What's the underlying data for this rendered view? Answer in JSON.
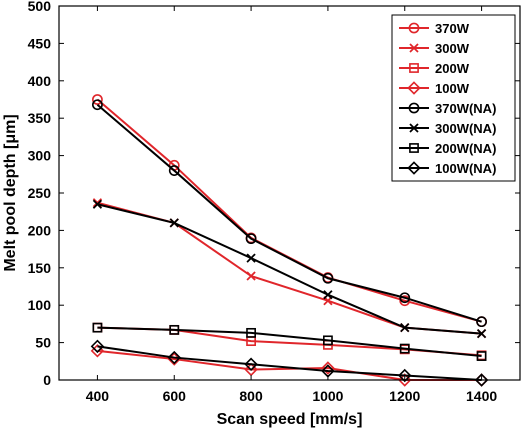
{
  "chart_data": {
    "type": "line",
    "xlabel": "Scan speed [mm/s]",
    "ylabel": "Melt pool depth [μm]",
    "x": [
      400,
      600,
      800,
      1000,
      1200,
      1400
    ],
    "xlim": [
      300,
      1500
    ],
    "ylim": [
      0,
      500
    ],
    "xticks": [
      "400",
      "600",
      "800",
      "1000",
      "1200",
      "1400"
    ],
    "yticks": [
      "0",
      "50",
      "100",
      "150",
      "200",
      "250",
      "300",
      "350",
      "400",
      "450",
      "500"
    ],
    "grid": false,
    "legend_position": "top-right",
    "series": [
      {
        "name": "370W",
        "color": "#e0262b",
        "marker": "circle",
        "values": [
          375,
          287,
          190,
          137,
          106,
          78
        ]
      },
      {
        "name": "300W",
        "color": "#e0262b",
        "marker": "x",
        "values": [
          237,
          210,
          139,
          106,
          70,
          62
        ]
      },
      {
        "name": "200W",
        "color": "#e0262b",
        "marker": "square",
        "values": [
          70,
          67,
          52,
          47,
          41,
          33
        ]
      },
      {
        "name": "100W",
        "color": "#e0262b",
        "marker": "diamond",
        "values": [
          39,
          28,
          14,
          16,
          0,
          0
        ]
      },
      {
        "name": "370W(NA)",
        "color": "#000000",
        "marker": "circle",
        "values": [
          368,
          280,
          189,
          136,
          110,
          78
        ]
      },
      {
        "name": "300W(NA)",
        "color": "#000000",
        "marker": "x",
        "values": [
          235,
          210,
          163,
          114,
          70,
          62
        ]
      },
      {
        "name": "200W(NA)",
        "color": "#000000",
        "marker": "square",
        "values": [
          70,
          67,
          63,
          53,
          42,
          32
        ]
      },
      {
        "name": "100W(NA)",
        "color": "#000000",
        "marker": "diamond",
        "values": [
          45,
          30,
          21,
          12,
          6,
          0
        ]
      }
    ]
  }
}
